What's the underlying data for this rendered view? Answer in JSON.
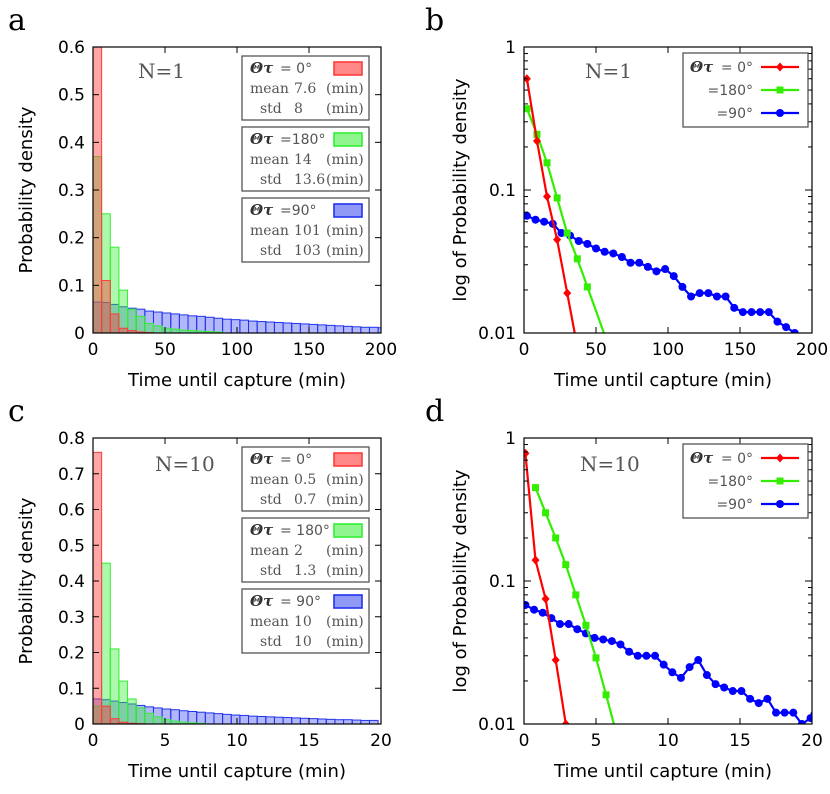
{
  "chart_data": [
    {
      "panel": "a",
      "type": "bar",
      "annotation": "N=1",
      "xlabel": "Time until capture (min)",
      "ylabel": "Probability density",
      "xlim": [
        0,
        200
      ],
      "ylim": [
        0,
        0.6
      ],
      "xticks": [
        "0",
        "50",
        "100",
        "150",
        "200"
      ],
      "yticks": [
        "0",
        "0.1",
        "0.2",
        "0.3",
        "0.4",
        "0.5",
        "0.6"
      ],
      "bin_width": 6,
      "legend_placement": "top-right",
      "series": [
        {
          "name": "Θτ = 0°",
          "color": "#ff3b3b",
          "mean": "7.6",
          "std": "8",
          "values": [
            0.6,
            0.11,
            0.04,
            0.01,
            0.005,
            0.002,
            0.001
          ]
        },
        {
          "name": "Θτ =180°",
          "color": "#33ee33",
          "mean": "14",
          "std": "13.6",
          "values": [
            0.37,
            0.25,
            0.18,
            0.09,
            0.05,
            0.035,
            0.02,
            0.015,
            0.01,
            0.008,
            0.006,
            0.005,
            0.004,
            0.003,
            0.002
          ]
        },
        {
          "name": "Θτ =90°",
          "color": "#2233ee",
          "mean": "101",
          "std": "103",
          "values": [
            0.065,
            0.064,
            0.06,
            0.055,
            0.052,
            0.05,
            0.046,
            0.044,
            0.042,
            0.04,
            0.038,
            0.036,
            0.035,
            0.033,
            0.031,
            0.029,
            0.028,
            0.027,
            0.025,
            0.024,
            0.023,
            0.022,
            0.021,
            0.02,
            0.019,
            0.018,
            0.017,
            0.016,
            0.015,
            0.014,
            0.013,
            0.012,
            0.012,
            0.011
          ]
        }
      ],
      "legend_entries": [
        {
          "theta": "Θτ",
          "eq": "= 0°",
          "mean": "7.6",
          "std": "8"
        },
        {
          "theta": "Θτ",
          "eq": "=180°",
          "mean": "14",
          "std": "13.6"
        },
        {
          "theta": "Θτ",
          "eq": "=90°",
          "mean": "101",
          "std": "103"
        }
      ],
      "mean_label": "mean",
      "std_label": "std",
      "unit_label": "(min)"
    },
    {
      "panel": "b",
      "type": "line",
      "annotation": "N=1",
      "xlabel": "Time until capture (min)",
      "ylabel": "log of Probability density",
      "xlim": [
        0,
        200
      ],
      "ylim": [
        0.01,
        1
      ],
      "yscale": "log",
      "xticks": [
        "0",
        "50",
        "100",
        "150",
        "200"
      ],
      "yticks": [
        "0.01",
        "0.1",
        "1"
      ],
      "legend_placement": "top-right",
      "series": [
        {
          "name": "Θτ = 0°",
          "color": "#ff0000",
          "marker": "diamond",
          "x": [
            2,
            9,
            16,
            23,
            30
          ],
          "y": [
            0.6,
            0.22,
            0.09,
            0.045,
            0.019
          ]
        },
        {
          "name": "=180°",
          "color": "#33ee00",
          "marker": "square",
          "x": [
            2,
            9,
            16,
            23,
            30,
            37,
            44
          ],
          "y": [
            0.37,
            0.245,
            0.155,
            0.088,
            0.05,
            0.033,
            0.021
          ]
        },
        {
          "name": "=90°",
          "color": "#0000ff",
          "marker": "circle",
          "x": [
            2,
            8,
            14,
            20,
            26,
            32,
            38,
            44,
            50,
            56,
            62,
            68,
            74,
            80,
            86,
            92,
            98,
            104,
            110,
            116,
            122,
            128,
            134,
            140,
            146,
            152,
            158,
            164,
            170,
            176,
            182,
            188
          ],
          "y": [
            0.066,
            0.062,
            0.06,
            0.058,
            0.05,
            0.048,
            0.044,
            0.042,
            0.039,
            0.037,
            0.036,
            0.034,
            0.031,
            0.031,
            0.029,
            0.027,
            0.028,
            0.025,
            0.021,
            0.018,
            0.019,
            0.019,
            0.018,
            0.018,
            0.015,
            0.014,
            0.014,
            0.014,
            0.014,
            0.012,
            0.011,
            0.01
          ]
        }
      ],
      "legend_entries": [
        {
          "theta": "Θτ",
          "eq": "= 0°"
        },
        {
          "theta": "",
          "eq": "=180°"
        },
        {
          "theta": "",
          "eq": "=90°"
        }
      ]
    },
    {
      "panel": "c",
      "type": "bar",
      "annotation": "N=10",
      "xlabel": "Time until capture (min)",
      "ylabel": "Probability density",
      "xlim": [
        0,
        20
      ],
      "ylim": [
        0,
        0.8
      ],
      "xticks": [
        "0",
        "5",
        "10",
        "15",
        "20"
      ],
      "yticks": [
        "0",
        "0.1",
        "0.2",
        "0.3",
        "0.4",
        "0.5",
        "0.6",
        "0.7",
        "0.8"
      ],
      "bin_width": 0.6,
      "legend_placement": "top-right",
      "series": [
        {
          "name": "Θτ = 0°",
          "color": "#ff3b3b",
          "mean": "0.5",
          "std": "0.7",
          "values": [
            0.76,
            0.05,
            0.015,
            0.005,
            0.002,
            0.001
          ]
        },
        {
          "name": "Θτ = 180°",
          "color": "#33ee33",
          "mean": "2",
          "std": "1.3",
          "values": [
            0.05,
            0.45,
            0.21,
            0.12,
            0.07,
            0.045,
            0.03,
            0.02,
            0.012,
            0.008,
            0.005,
            0.003,
            0.002
          ]
        },
        {
          "name": "Θτ = 90°",
          "color": "#2233ee",
          "mean": "10",
          "std": "10",
          "values": [
            0.07,
            0.068,
            0.064,
            0.06,
            0.056,
            0.052,
            0.048,
            0.045,
            0.042,
            0.04,
            0.037,
            0.035,
            0.033,
            0.031,
            0.029,
            0.027,
            0.025,
            0.024,
            0.022,
            0.021,
            0.02,
            0.019,
            0.018,
            0.017,
            0.016,
            0.015,
            0.014,
            0.013,
            0.012,
            0.012,
            0.011,
            0.01,
            0.01
          ]
        }
      ],
      "legend_entries": [
        {
          "theta": "Θτ",
          "eq": "= 0°",
          "mean": "0.5",
          "std": "0.7"
        },
        {
          "theta": "Θτ",
          "eq": "= 180°",
          "mean": "2",
          "std": "1.3"
        },
        {
          "theta": "Θτ",
          "eq": "= 90°",
          "mean": "10",
          "std": "10"
        }
      ],
      "mean_label": "mean",
      "std_label": "std",
      "unit_label": "(min)"
    },
    {
      "panel": "d",
      "type": "line",
      "annotation": "N=10",
      "xlabel": "Time until capture (min)",
      "ylabel": "log of Probability density",
      "xlim": [
        0,
        20
      ],
      "ylim": [
        0.01,
        1
      ],
      "yscale": "log",
      "xticks": [
        "0",
        "5",
        "10",
        "15",
        "20"
      ],
      "yticks": [
        "0.01",
        "0.1",
        "1"
      ],
      "legend_placement": "top-right",
      "series": [
        {
          "name": "Θτ = 0°",
          "color": "#ff0000",
          "marker": "diamond",
          "x": [
            0.1,
            0.8,
            1.5,
            2.2,
            2.9
          ],
          "y": [
            0.78,
            0.14,
            0.075,
            0.028,
            0.01
          ]
        },
        {
          "name": "=180°",
          "color": "#33ee00",
          "marker": "square",
          "x": [
            0.8,
            1.5,
            2.2,
            2.9,
            3.6,
            4.3,
            5.0,
            5.7,
            6.3
          ],
          "y": [
            0.45,
            0.3,
            0.2,
            0.13,
            0.08,
            0.049,
            0.029,
            0.016,
            0.0095
          ]
        },
        {
          "name": "=90°",
          "color": "#0000ff",
          "marker": "circle",
          "x": [
            0.1,
            0.7,
            1.3,
            1.9,
            2.5,
            3.1,
            3.7,
            4.3,
            4.9,
            5.5,
            6.1,
            6.7,
            7.3,
            7.9,
            8.5,
            9.1,
            9.7,
            10.3,
            10.9,
            11.5,
            12.1,
            12.7,
            13.3,
            13.9,
            14.5,
            15.1,
            15.7,
            16.3,
            16.9,
            17.5,
            18.1,
            18.7,
            19.3,
            19.9
          ],
          "y": [
            0.068,
            0.063,
            0.06,
            0.055,
            0.05,
            0.05,
            0.046,
            0.043,
            0.04,
            0.039,
            0.038,
            0.036,
            0.032,
            0.03,
            0.03,
            0.03,
            0.026,
            0.023,
            0.021,
            0.025,
            0.028,
            0.022,
            0.019,
            0.018,
            0.017,
            0.017,
            0.015,
            0.014,
            0.015,
            0.012,
            0.012,
            0.012,
            0.01,
            0.011
          ]
        }
      ],
      "legend_entries": [
        {
          "theta": "Θτ",
          "eq": "= 0°"
        },
        {
          "theta": "",
          "eq": "=180°"
        },
        {
          "theta": "",
          "eq": "=90°"
        }
      ]
    }
  ]
}
